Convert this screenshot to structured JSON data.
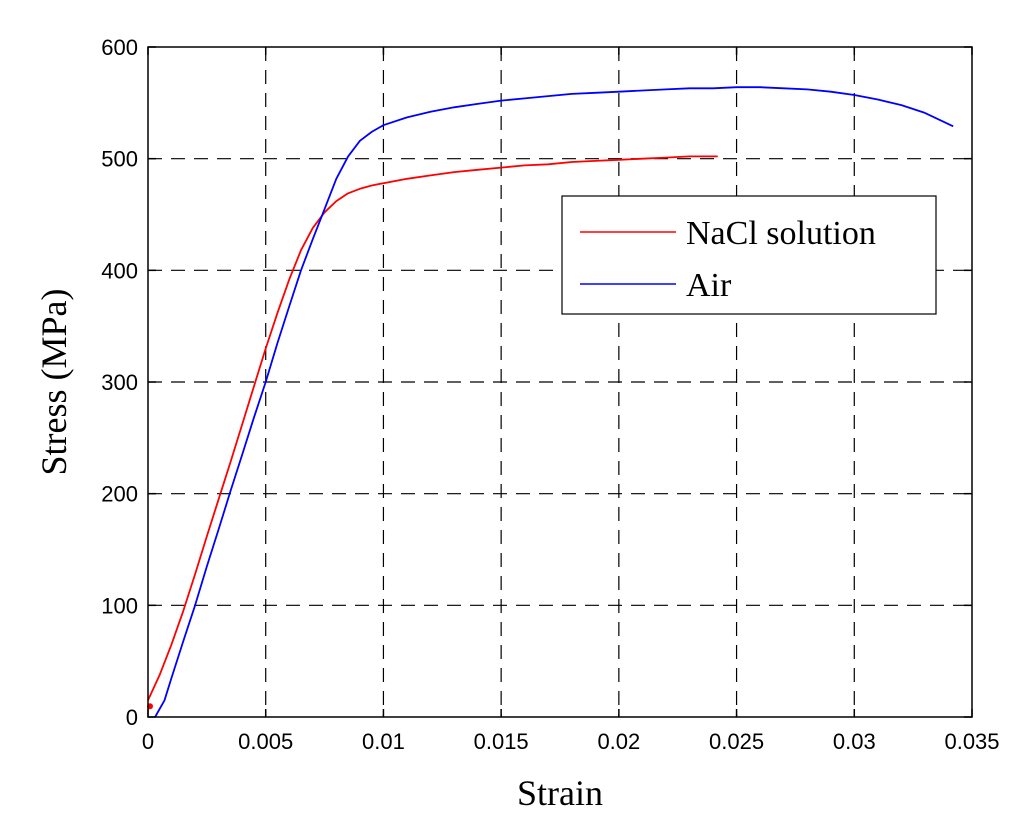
{
  "chart_data": {
    "type": "line",
    "xlabel": "Strain",
    "ylabel": "Stress (MPa)",
    "xlim": [
      0,
      0.035
    ],
    "ylim": [
      0,
      600
    ],
    "xticks": [
      0,
      0.005,
      0.01,
      0.015,
      0.02,
      0.025,
      0.03,
      0.035
    ],
    "xtick_labels": [
      "0",
      "0.005",
      "0.01",
      "0.015",
      "0.02",
      "0.025",
      "0.03",
      "0.035"
    ],
    "yticks": [
      0,
      100,
      200,
      300,
      400,
      500,
      600
    ],
    "ytick_labels": [
      "0",
      "100",
      "200",
      "300",
      "400",
      "500",
      "600"
    ],
    "grid": true,
    "legend_position": "top-right",
    "series": [
      {
        "name": "NaCl solution",
        "color": "#ff0000",
        "x": [
          0,
          0.0005,
          0.001,
          0.0015,
          0.002,
          0.0025,
          0.003,
          0.0035,
          0.004,
          0.0045,
          0.005,
          0.0055,
          0.006,
          0.0065,
          0.007,
          0.0075,
          0.008,
          0.0085,
          0.009,
          0.0095,
          0.01,
          0.011,
          0.012,
          0.013,
          0.014,
          0.015,
          0.016,
          0.017,
          0.018,
          0.019,
          0.02,
          0.021,
          0.022,
          0.023,
          0.0242
        ],
        "y": [
          15,
          38,
          65,
          95,
          128,
          162,
          195,
          228,
          262,
          296,
          330,
          362,
          392,
          418,
          438,
          452,
          462,
          469,
          473,
          476,
          478,
          482,
          485,
          488,
          490,
          492,
          494,
          495,
          497,
          498,
          499,
          500,
          501,
          502,
          502
        ]
      },
      {
        "name": "Air",
        "color": "#0000ff",
        "x": [
          0.0003,
          0.0007,
          0.001,
          0.0015,
          0.002,
          0.0025,
          0.003,
          0.0035,
          0.004,
          0.0045,
          0.005,
          0.0055,
          0.006,
          0.0065,
          0.007,
          0.0075,
          0.008,
          0.0085,
          0.009,
          0.0095,
          0.01,
          0.011,
          0.012,
          0.013,
          0.014,
          0.015,
          0.016,
          0.017,
          0.018,
          0.019,
          0.02,
          0.021,
          0.022,
          0.023,
          0.024,
          0.025,
          0.026,
          0.027,
          0.028,
          0.029,
          0.03,
          0.031,
          0.032,
          0.033,
          0.0342
        ],
        "y": [
          0,
          15,
          35,
          68,
          100,
          135,
          168,
          202,
          235,
          268,
          300,
          335,
          368,
          400,
          428,
          455,
          482,
          502,
          516,
          524,
          530,
          537,
          542,
          546,
          549,
          552,
          554,
          556,
          558,
          559,
          560,
          561,
          562,
          563,
          563,
          564,
          564,
          563,
          562,
          560,
          557,
          553,
          548,
          541,
          529
        ]
      }
    ]
  }
}
